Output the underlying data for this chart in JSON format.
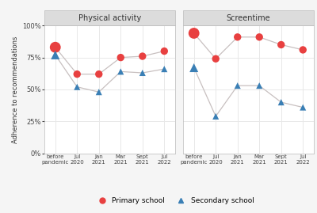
{
  "panel_titles": [
    "Physical activity",
    "Screentime"
  ],
  "x_labels_line1": [
    "before",
    "Jul",
    "Jan",
    "Mar",
    "Sept",
    "Jul"
  ],
  "x_labels_line2": [
    "pandemic",
    "2020",
    "2021",
    "2021",
    "2021",
    "2022"
  ],
  "physical_activity": {
    "primary": [
      83,
      62,
      62,
      75,
      76,
      80
    ],
    "secondary": [
      77,
      52,
      48,
      64,
      63,
      66
    ]
  },
  "screentime": {
    "primary": [
      94,
      74,
      91,
      91,
      85,
      81
    ],
    "secondary": [
      67,
      29,
      53,
      53,
      40,
      36
    ]
  },
  "primary_color": "#e84040",
  "secondary_color": "#3a7fb5",
  "line_color": "#c8c0c0",
  "strip_bg": "#dcdcdc",
  "strip_border": "#bbbbbb",
  "background_plot": "#f5f5f5",
  "plot_area_bg": "#ffffff",
  "grid_color": "#e8e8e8",
  "ylabel": "Adherence to recommendations",
  "legend_primary": "Primary school",
  "legend_secondary": "Secondary school",
  "ylim": [
    0,
    100
  ],
  "yticks": [
    0,
    25,
    50,
    75,
    100
  ],
  "ytick_labels": [
    "0%",
    "25%",
    "50%",
    "75%",
    "100%"
  ]
}
